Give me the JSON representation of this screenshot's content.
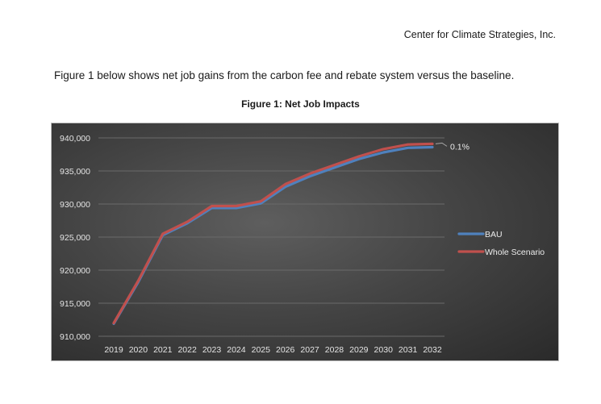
{
  "header": {
    "org": "Center for Climate Strategies, Inc."
  },
  "body": {
    "intro": "Figure 1 below shows net job gains from the carbon fee and rebate system versus the baseline."
  },
  "figure": {
    "title": "Figure 1: Net Job Impacts"
  },
  "colors": {
    "bau": "#4f81bd",
    "whole": "#c0504d",
    "background": "#404040"
  },
  "chart_data": {
    "type": "line",
    "title": "",
    "xlabel": "",
    "ylabel": "",
    "ylim": [
      910000,
      940000
    ],
    "yticks": [
      910000,
      915000,
      920000,
      925000,
      930000,
      935000,
      940000
    ],
    "ytick_labels": [
      "910,000",
      "915,000",
      "920,000",
      "925,000",
      "930,000",
      "935,000",
      "940,000"
    ],
    "grid": true,
    "legend_position": "right",
    "categories": [
      "2019",
      "2020",
      "2021",
      "2022",
      "2023",
      "2024",
      "2025",
      "2026",
      "2027",
      "2028",
      "2029",
      "2030",
      "2031",
      "2032"
    ],
    "series": [
      {
        "name": "BAU",
        "color": "#4f81bd",
        "values": [
          911900,
          918200,
          925300,
          927100,
          929400,
          929400,
          930100,
          932600,
          934200,
          935500,
          936800,
          937800,
          938500,
          938600
        ]
      },
      {
        "name": "Whole Scenario",
        "color": "#c0504d",
        "values": [
          912000,
          918400,
          925500,
          927300,
          929700,
          929700,
          930400,
          933000,
          934600,
          935900,
          937200,
          938300,
          939000,
          939100
        ]
      }
    ],
    "annotation": {
      "text": "0.1%",
      "series": "Whole Scenario",
      "category": "2032"
    }
  }
}
